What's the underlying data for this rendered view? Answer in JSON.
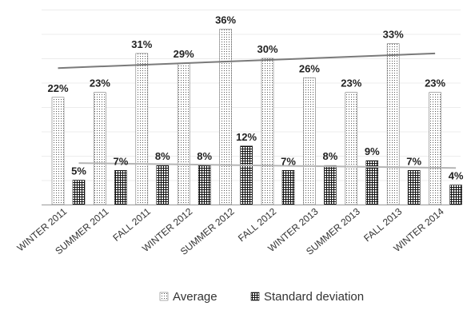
{
  "chart_data": {
    "type": "bar",
    "categories": [
      "WINTER 2011",
      "SUMMER 2011",
      "FALL 2011",
      "WINTER 2012",
      "SUMMER 2012",
      "FALL 2012",
      "WINTER 2013",
      "SUMMER 2013",
      "FALL 2013",
      "WINTER 2014"
    ],
    "series": [
      {
        "name": "Average",
        "values": [
          22,
          23,
          31,
          29,
          36,
          30,
          26,
          23,
          33,
          23
        ],
        "labels": [
          "22%",
          "23%",
          "31%",
          "29%",
          "36%",
          "30%",
          "26%",
          "23%",
          "33%",
          "23%"
        ],
        "pattern": "dots"
      },
      {
        "name": "Standard deviation",
        "values": [
          5,
          7,
          8,
          8,
          12,
          7,
          8,
          9,
          7,
          4
        ],
        "labels": [
          "5%",
          "7%",
          "8%",
          "8%",
          "12%",
          "7%",
          "8%",
          "9%",
          "7%",
          "4%"
        ],
        "pattern": "grid"
      }
    ],
    "trendlines": [
      {
        "series": "Average",
        "start": 28,
        "end": 31,
        "color": "#7a7a7a"
      },
      {
        "series": "Standard deviation",
        "start": 8.5,
        "end": 7.5,
        "color": "#b5b5b5"
      }
    ],
    "ylim": [
      0,
      40
    ],
    "grid": true,
    "legend": "bottom",
    "xlabel": "",
    "ylabel": ""
  }
}
